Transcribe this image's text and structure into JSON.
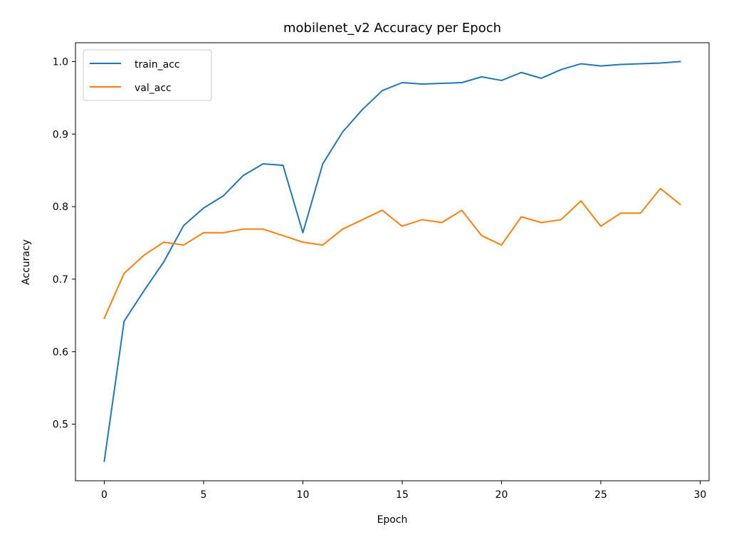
{
  "chart_data": {
    "type": "line",
    "title": "mobilenet_v2 Accuracy per Epoch",
    "xlabel": "Epoch",
    "ylabel": "Accuracy",
    "xlim": [
      -1.45,
      30.45
    ],
    "ylim": [
      0.422,
      1.026
    ],
    "xticks": [
      0,
      5,
      10,
      15,
      20,
      25,
      30
    ],
    "xtick_labels": [
      "0",
      "5",
      "10",
      "15",
      "20",
      "25",
      "30"
    ],
    "yticks": [
      0.5,
      0.6,
      0.7,
      0.8,
      0.9,
      1.0
    ],
    "ytick_labels": [
      "0.5",
      "0.6",
      "0.7",
      "0.8",
      "0.9",
      "1.0"
    ],
    "grid": false,
    "legend_position": "upper-left",
    "x": [
      0,
      1,
      2,
      3,
      4,
      5,
      6,
      7,
      8,
      9,
      10,
      11,
      12,
      13,
      14,
      15,
      16,
      17,
      18,
      19,
      20,
      21,
      22,
      23,
      24,
      25,
      26,
      27,
      28,
      29
    ],
    "series": [
      {
        "name": "train_acc",
        "color": "#1f77b4",
        "values": [
          0.449,
          0.642,
          0.684,
          0.724,
          0.774,
          0.798,
          0.815,
          0.843,
          0.859,
          0.857,
          0.764,
          0.859,
          0.903,
          0.934,
          0.96,
          0.971,
          0.969,
          0.97,
          0.971,
          0.979,
          0.974,
          0.985,
          0.977,
          0.989,
          0.997,
          0.994,
          0.996,
          0.997,
          0.998,
          1.0
        ]
      },
      {
        "name": "val_acc",
        "color": "#ff7f0e",
        "values": [
          0.646,
          0.708,
          0.733,
          0.751,
          0.747,
          0.764,
          0.764,
          0.769,
          0.769,
          0.76,
          0.751,
          0.747,
          0.769,
          0.782,
          0.795,
          0.773,
          0.782,
          0.778,
          0.795,
          0.76,
          0.747,
          0.786,
          0.778,
          0.782,
          0.808,
          0.773,
          0.791,
          0.791,
          0.825,
          0.803
        ]
      }
    ]
  }
}
